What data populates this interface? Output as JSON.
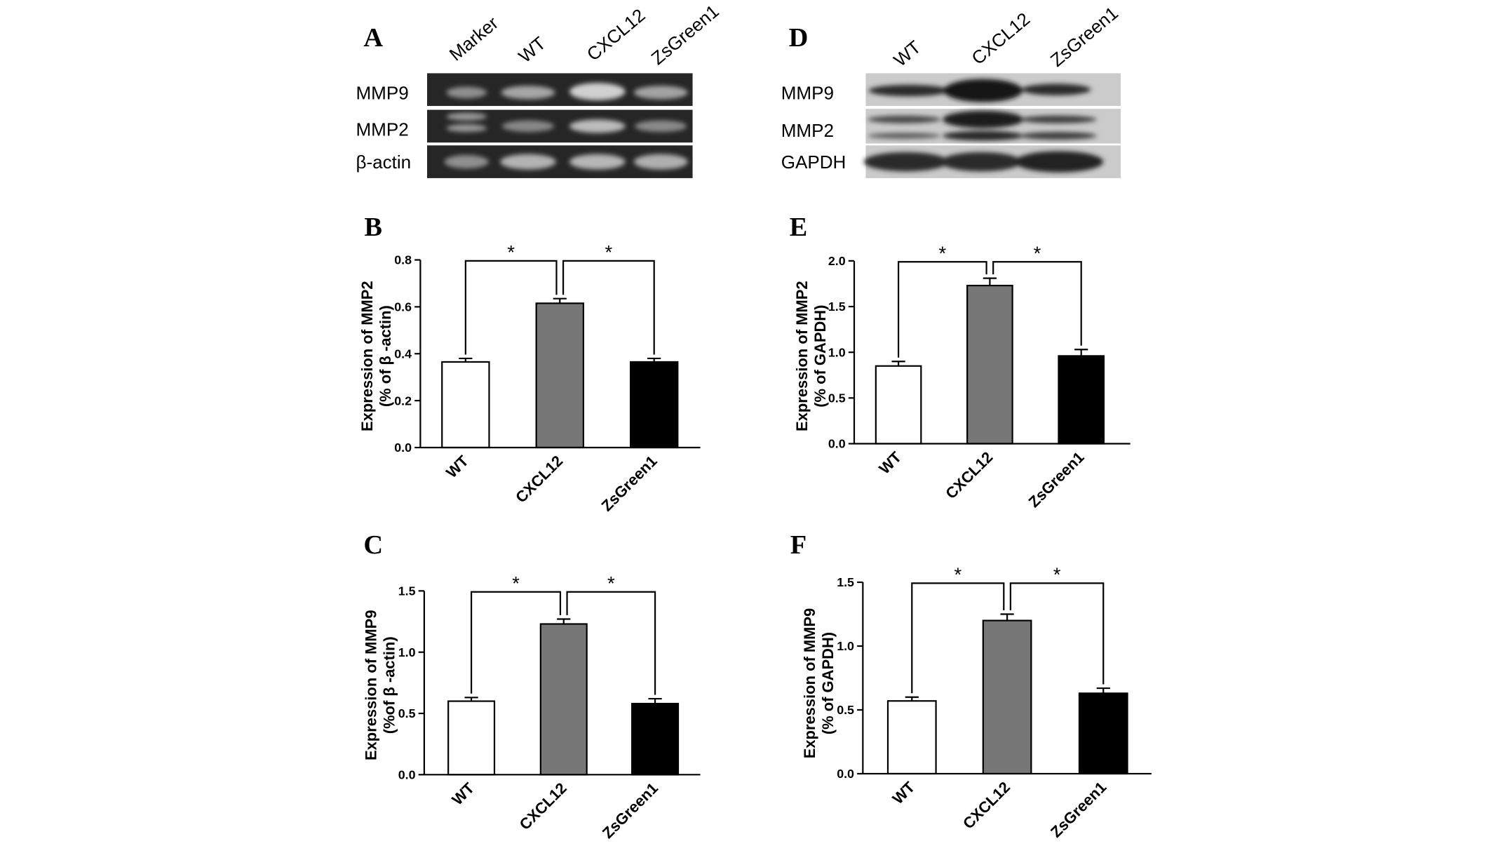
{
  "gels": [
    {
      "panel": "A",
      "lanes": [
        "Marker",
        "WT",
        "CXCL12",
        "ZsGreen1"
      ],
      "rows": [
        "MMP9",
        "MMP2",
        "β-actin"
      ],
      "colors": {
        "background": "#262626"
      }
    },
    {
      "panel": "D",
      "lanes": [
        "WT",
        "CXCL12",
        "ZsGreen1"
      ],
      "rows": [
        "MMP9",
        "MMP2",
        "GAPDH"
      ],
      "colors": {
        "background": "#cbcbcb"
      }
    }
  ],
  "chart_data": [
    {
      "panel": "B",
      "type": "bar",
      "categories": [
        "WT",
        "CXCL12",
        "ZsGreen1"
      ],
      "values": [
        0.365,
        0.615,
        0.365
      ],
      "errors": [
        0.015,
        0.02,
        0.015
      ],
      "ylabel": [
        "Expression of MMP2",
        "(% of β -actin)"
      ],
      "ylim": [
        0,
        0.8
      ],
      "yticks": [
        "0.0",
        "0.2",
        "0.4",
        "0.6",
        "0.8"
      ],
      "colors": [
        "#ffffff",
        "#777777",
        "#000000"
      ],
      "significance": [
        {
          "from": 0,
          "to": 1,
          "label": "*"
        },
        {
          "from": 1,
          "to": 2,
          "label": "*"
        }
      ],
      "grid": false,
      "legend": "none"
    },
    {
      "panel": "C",
      "type": "bar",
      "categories": [
        "WT",
        "CXCL12",
        "ZsGreen1"
      ],
      "values": [
        0.6,
        1.23,
        0.58
      ],
      "errors": [
        0.03,
        0.04,
        0.04
      ],
      "ylabel": [
        "Expression of MMP9",
        "(%of β -actin)"
      ],
      "ylim": [
        0,
        1.5
      ],
      "yticks": [
        "0.0",
        "0.5",
        "1.0",
        "1.5"
      ],
      "colors": [
        "#ffffff",
        "#777777",
        "#000000"
      ],
      "significance": [
        {
          "from": 0,
          "to": 1,
          "label": "*"
        },
        {
          "from": 1,
          "to": 2,
          "label": "*"
        }
      ],
      "grid": false,
      "legend": "none"
    },
    {
      "panel": "E",
      "type": "bar",
      "categories": [
        "WT",
        "CXCL12",
        "ZsGreen1"
      ],
      "values": [
        0.85,
        1.73,
        0.96
      ],
      "errors": [
        0.05,
        0.08,
        0.07
      ],
      "ylabel": [
        "Expression of MMP2",
        "(% of GAPDH)"
      ],
      "ylim": [
        0,
        2.0
      ],
      "yticks": [
        "0.0",
        "0.5",
        "1.0",
        "1.5",
        "2.0"
      ],
      "colors": [
        "#ffffff",
        "#777777",
        "#000000"
      ],
      "significance": [
        {
          "from": 0,
          "to": 1,
          "label": "*"
        },
        {
          "from": 1,
          "to": 2,
          "label": "*"
        }
      ],
      "grid": false,
      "legend": "none"
    },
    {
      "panel": "F",
      "type": "bar",
      "categories": [
        "WT",
        "CXCL12",
        "ZsGreen1"
      ],
      "values": [
        0.57,
        1.2,
        0.63
      ],
      "errors": [
        0.03,
        0.05,
        0.04
      ],
      "ylabel": [
        "Expression of MMP9",
        "(% of GAPDH)"
      ],
      "ylim": [
        0,
        1.5
      ],
      "yticks": [
        "0.0",
        "0.5",
        "1.0",
        "1.5"
      ],
      "colors": [
        "#ffffff",
        "#777777",
        "#000000"
      ],
      "significance": [
        {
          "from": 0,
          "to": 1,
          "label": "*"
        },
        {
          "from": 1,
          "to": 2,
          "label": "*"
        }
      ],
      "grid": false,
      "legend": "none"
    }
  ]
}
